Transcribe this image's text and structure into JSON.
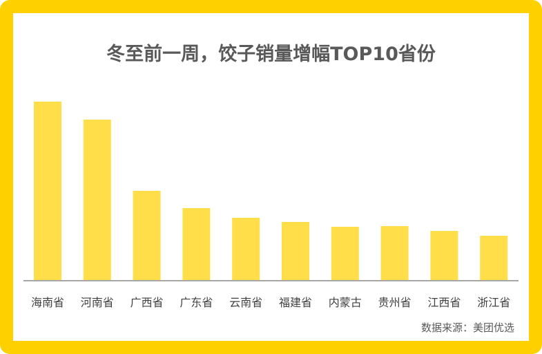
{
  "chart_data": {
    "type": "bar",
    "title": "冬至前一周，饺子销量增幅TOP10省份",
    "categories": [
      "海南省",
      "河南省",
      "广西省",
      "广东省",
      "云南省",
      "福建省",
      "内蒙古",
      "贵州省",
      "江西省",
      "浙江省"
    ],
    "values": [
      258,
      232,
      129,
      104,
      90,
      84,
      77,
      78,
      71,
      64
    ],
    "value_units": "relative (no axis shown)",
    "xlabel": "",
    "ylabel": "",
    "grid": false,
    "bar_color": "#FFDE4A",
    "axis_color": "#A6A6A6"
  },
  "source": "数据来源：美团优选"
}
